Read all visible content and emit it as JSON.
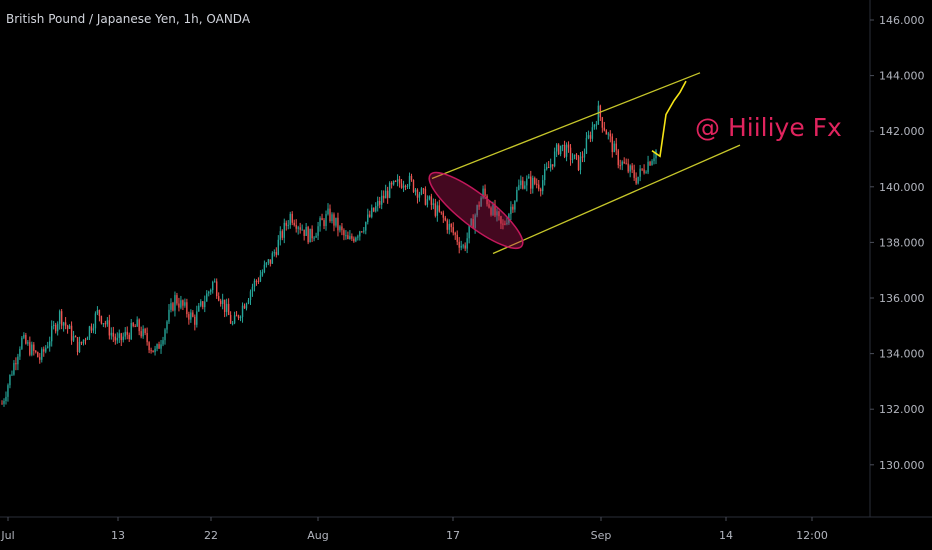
{
  "header": {
    "symbol_title": "British Pound / Japanese Yen, 1h, OANDA"
  },
  "annotation": {
    "watermark": "@ Hiiliye Fx"
  },
  "colors": {
    "background": "#000000",
    "candle_up": "#26a69a",
    "candle_down": "#ef5350",
    "channel": "#c6c62a",
    "projection": "#f5e416",
    "ellipse": "#c2185b",
    "axis_text": "#b2b5be"
  },
  "chart_data": {
    "type": "candlestick",
    "title": "British Pound / Japanese Yen, 1h, OANDA",
    "xlabel": "",
    "ylabel": "",
    "ylim": [
      128.5,
      147
    ],
    "y_ticks": [
      130,
      132,
      134,
      136,
      138,
      140,
      142,
      144,
      146
    ],
    "y_tick_labels": [
      "130.000",
      "132.000",
      "134.000",
      "136.000",
      "138.000",
      "140.000",
      "142.000",
      "144.000",
      "146.000"
    ],
    "x_ticks": [
      "Jul",
      "13",
      "22",
      "Aug",
      "17",
      "Sep",
      "14",
      "12:00"
    ],
    "grid": false,
    "price_path": [
      {
        "t": "Jul",
        "price": 132.2
      },
      {
        "t": "Jul",
        "price": 134.5
      },
      {
        "t": "",
        "price": 133.8
      },
      {
        "t": "",
        "price": 135.4
      },
      {
        "t": "",
        "price": 134.2
      },
      {
        "t": "13",
        "price": 135.5
      },
      {
        "t": "",
        "price": 134.4
      },
      {
        "t": "",
        "price": 135.0
      },
      {
        "t": "",
        "price": 134.0
      },
      {
        "t": "",
        "price": 136.0
      },
      {
        "t": "22",
        "price": 135.2
      },
      {
        "t": "",
        "price": 136.6
      },
      {
        "t": "",
        "price": 135.0
      },
      {
        "t": "",
        "price": 136.4
      },
      {
        "t": "",
        "price": 137.4
      },
      {
        "t": "",
        "price": 139.0
      },
      {
        "t": "Aug",
        "price": 138.2
      },
      {
        "t": "",
        "price": 139.0
      },
      {
        "t": "",
        "price": 138.0
      },
      {
        "t": "",
        "price": 138.8
      },
      {
        "t": "",
        "price": 139.8
      },
      {
        "t": "",
        "price": 140.3
      },
      {
        "t": "17",
        "price": 139.6
      },
      {
        "t": "",
        "price": 138.8
      },
      {
        "t": "",
        "price": 137.8
      },
      {
        "t": "",
        "price": 139.8
      },
      {
        "t": "",
        "price": 138.5
      },
      {
        "t": "",
        "price": 140.2
      },
      {
        "t": "",
        "price": 140.1
      },
      {
        "t": "",
        "price": 141.5
      },
      {
        "t": "Sep",
        "price": 140.8
      },
      {
        "t": "",
        "price": 142.7
      },
      {
        "t": "",
        "price": 141.0
      },
      {
        "t": "",
        "price": 140.3
      },
      {
        "t": "",
        "price": 141.3
      }
    ],
    "drawings": {
      "channel_upper": [
        {
          "t": "17",
          "price": 140.3
        },
        {
          "t": "",
          "price": 144.1
        }
      ],
      "channel_lower": [
        {
          "t": "17",
          "price": 137.6
        },
        {
          "t": "",
          "price": 141.5
        }
      ],
      "projection_path": [
        141.3,
        141.1,
        142.6,
        143.1,
        143.4,
        143.8
      ],
      "ellipse_highlight": {
        "from_price": 140.3,
        "to_price": 138.0
      }
    },
    "last_price": 141.3
  }
}
